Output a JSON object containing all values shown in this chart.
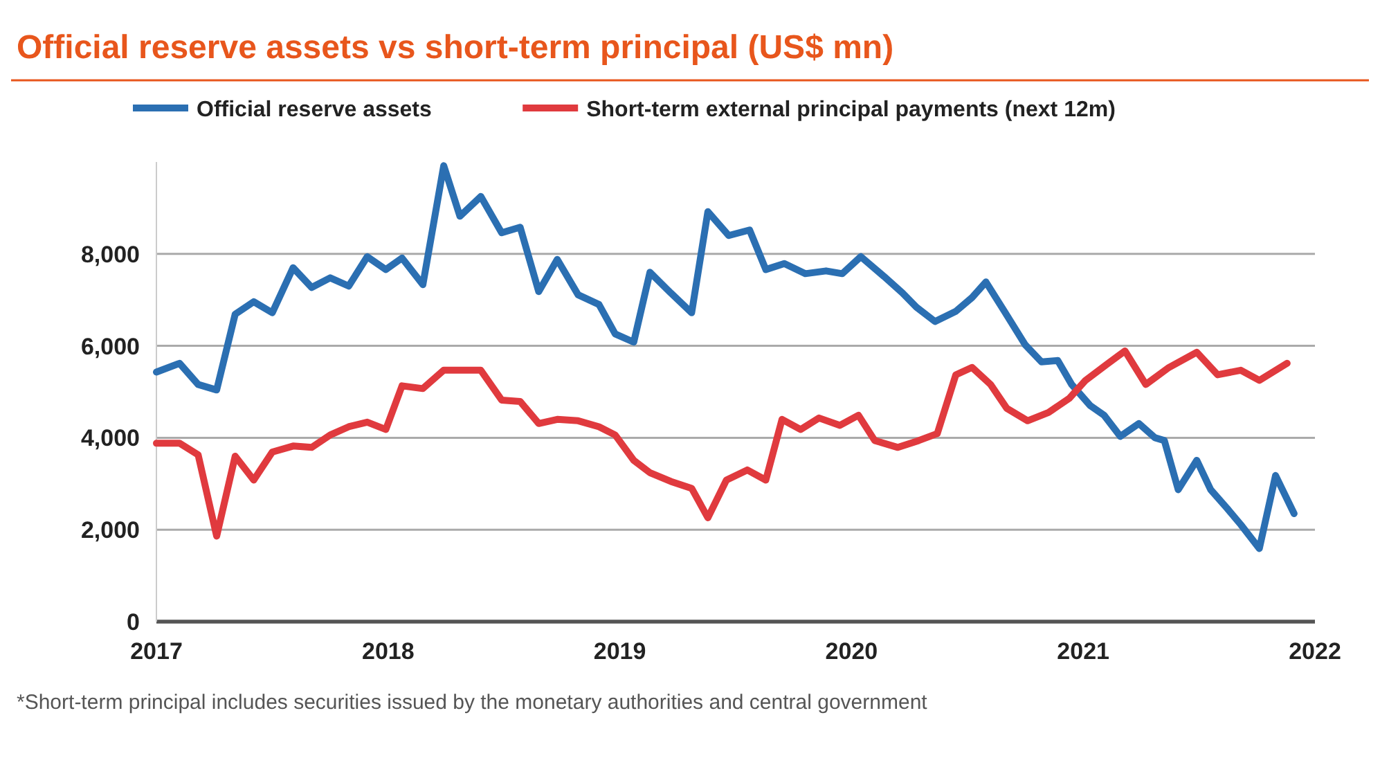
{
  "chart_data": {
    "type": "line",
    "title": "Official reserve assets vs short-term principal (US$ mn)",
    "x": [
      2017.0,
      2017.1,
      2017.18,
      2017.26,
      2017.34,
      2017.42,
      2017.5,
      2017.59,
      2017.67,
      2017.75,
      2017.83,
      2017.91,
      2017.99,
      2018.06,
      2018.15,
      2018.24,
      2018.31,
      2018.4,
      2018.49,
      2018.57,
      2018.65,
      2018.73,
      2018.82,
      2018.91,
      2018.98,
      2019.06,
      2019.13,
      2019.22,
      2019.31,
      2019.38,
      2019.47,
      2019.56,
      2019.63,
      2019.71,
      2019.8,
      2019.89,
      2019.96,
      2020.04,
      2020.14,
      2020.22,
      2020.28,
      2020.36,
      2020.45,
      2020.52,
      2020.58,
      2020.66,
      2020.75,
      2020.82,
      2020.89,
      2020.95,
      2021.03,
      2021.09,
      2021.16,
      2021.24,
      2021.31,
      2021.35,
      2021.41,
      2021.49,
      2021.55,
      2021.62,
      2021.68,
      2021.76,
      2021.83,
      2021.91
    ],
    "series": [
      {
        "name": "Official reserve assets",
        "color": "#2b6fb2",
        "values": [
          5430,
          5620,
          5160,
          5040,
          6690,
          6960,
          6720,
          7700,
          7270,
          7480,
          7300,
          7940,
          7660,
          7910,
          7330,
          9920,
          8820,
          9250,
          8460,
          8580,
          7180,
          7880,
          7110,
          6900,
          6260,
          6080,
          7600,
          7150,
          6720,
          8920,
          8400,
          8520,
          7660,
          7790,
          7570,
          7630,
          7570,
          7940,
          7510,
          7150,
          6840,
          6530,
          6750,
          7050,
          7390,
          6750,
          6020,
          5650,
          5680,
          5160,
          4700,
          4490,
          4030,
          4310,
          4000,
          3940,
          2870,
          3510,
          2870,
          2470,
          2110,
          1590,
          3180,
          2350
        ]
      },
      {
        "name": "Short-term external principal payments (next 12m)",
        "color": "#e03a3e",
        "x": [
          2017.0,
          2017.1,
          2017.18,
          2017.26,
          2017.34,
          2017.42,
          2017.5,
          2017.59,
          2017.67,
          2017.75,
          2017.83,
          2017.91,
          2017.99,
          2018.06,
          2018.15,
          2018.24,
          2018.33,
          2018.4,
          2018.49,
          2018.57,
          2018.65,
          2018.73,
          2018.82,
          2018.91,
          2018.98,
          2019.06,
          2019.13,
          2019.22,
          2019.31,
          2019.38,
          2019.46,
          2019.55,
          2019.63,
          2019.7,
          2019.78,
          2019.86,
          2019.95,
          2020.03,
          2020.1,
          2020.2,
          2020.29,
          2020.37,
          2020.45,
          2020.52,
          2020.6,
          2020.67,
          2020.76,
          2020.85,
          2020.94,
          2021.01,
          2021.1,
          2021.18,
          2021.27,
          2021.37,
          2021.49,
          2021.58,
          2021.68,
          2021.76,
          2021.88
        ],
        "values": [
          3880,
          3880,
          3630,
          1860,
          3600,
          3080,
          3690,
          3820,
          3790,
          4060,
          4240,
          4340,
          4180,
          5130,
          5070,
          5470,
          5470,
          5470,
          4820,
          4790,
          4310,
          4400,
          4370,
          4240,
          4060,
          3510,
          3240,
          3050,
          2900,
          2260,
          3080,
          3300,
          3080,
          4400,
          4180,
          4430,
          4270,
          4490,
          3940,
          3790,
          3940,
          4090,
          5370,
          5530,
          5160,
          4640,
          4370,
          4550,
          4860,
          5250,
          5590,
          5890,
          5160,
          5530,
          5860,
          5370,
          5470,
          5250,
          5620
        ]
      }
    ],
    "xlim": [
      2017,
      2022
    ],
    "xticks": [
      2017,
      2018,
      2019,
      2020,
      2021,
      2022
    ],
    "ylim": [
      0,
      10000
    ],
    "yticks": [
      {
        "value": 0,
        "label": "0"
      },
      {
        "value": 2000,
        "label": "2,000"
      },
      {
        "value": 4000,
        "label": "4,000"
      },
      {
        "value": 6000,
        "label": "6,000"
      },
      {
        "value": 8000,
        "label": "8,000"
      }
    ],
    "grid": "y",
    "legend": "top",
    "marker": "none",
    "line_style": "solid",
    "annotations": [
      "*Short-term principal includes securities issued by the monetary authorities and central government"
    ]
  }
}
